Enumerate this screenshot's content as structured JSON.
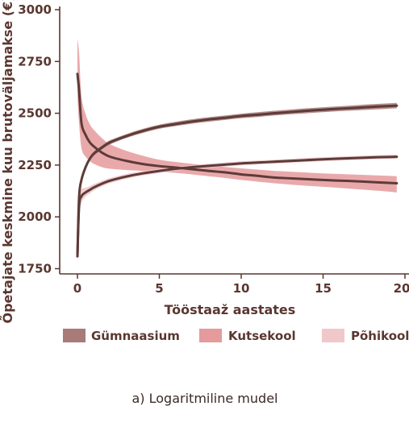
{
  "chart_data": {
    "type": "line",
    "title": "",
    "caption": "a) Logaritmiline mudel",
    "xlabel": "Tööstaaž aastates",
    "ylabel": "Õpetajate keskmine kuu brutoväljamakse (€)",
    "xlim": [
      -0.9,
      20.3
    ],
    "ylim": [
      1700,
      3010
    ],
    "x_ticks": [
      0,
      5,
      10,
      15,
      20
    ],
    "y_ticks": [
      1750,
      2000,
      2250,
      2500,
      2750,
      3000
    ],
    "grid": false,
    "legend_position": "bottom",
    "x": [
      0,
      0.1,
      0.25,
      0.5,
      0.75,
      1,
      1.5,
      2,
      3,
      4,
      5,
      6,
      7,
      8,
      9,
      10,
      11,
      12,
      13,
      14,
      15,
      16,
      17,
      18,
      19,
      19.5
    ],
    "series": [
      {
        "name": "Gümnaasium",
        "color": "#a87b78",
        "line_color": "#5d3b38",
        "values": [
          1810,
          2095,
          2180,
          2240,
          2280,
          2305,
          2335,
          2360,
          2390,
          2415,
          2435,
          2448,
          2460,
          2470,
          2478,
          2487,
          2493,
          2500,
          2506,
          2512,
          2517,
          2522,
          2526,
          2531,
          2535,
          2537
        ],
        "lower": [
          1800,
          2080,
          2168,
          2230,
          2270,
          2295,
          2325,
          2350,
          2381,
          2405,
          2425,
          2438,
          2450,
          2459,
          2468,
          2476,
          2482,
          2489,
          2495,
          2500,
          2505,
          2510,
          2514,
          2518,
          2522,
          2524
        ],
        "upper": [
          1835,
          2110,
          2192,
          2250,
          2290,
          2315,
          2345,
          2370,
          2400,
          2425,
          2445,
          2459,
          2471,
          2481,
          2489,
          2498,
          2505,
          2512,
          2518,
          2524,
          2529,
          2534,
          2539,
          2544,
          2548,
          2550
        ]
      },
      {
        "name": "Kutsekool",
        "color": "#e59a9c",
        "line_color": "#5d3b38",
        "values": [
          2690,
          2610,
          2450,
          2395,
          2360,
          2340,
          2310,
          2290,
          2270,
          2255,
          2245,
          2238,
          2230,
          2222,
          2215,
          2205,
          2198,
          2190,
          2186,
          2182,
          2178,
          2175,
          2172,
          2168,
          2164,
          2162
        ],
        "lower": [
          2580,
          2450,
          2330,
          2290,
          2270,
          2256,
          2240,
          2232,
          2226,
          2222,
          2218,
          2212,
          2205,
          2196,
          2188,
          2178,
          2170,
          2162,
          2156,
          2150,
          2145,
          2140,
          2134,
          2128,
          2122,
          2118
        ],
        "upper": [
          2860,
          2790,
          2580,
          2495,
          2448,
          2420,
          2380,
          2350,
          2318,
          2295,
          2276,
          2265,
          2256,
          2248,
          2241,
          2234,
          2228,
          2222,
          2218,
          2214,
          2210,
          2207,
          2204,
          2201,
          2198,
          2196
        ]
      },
      {
        "name": "Põhikool",
        "color": "#f0c8c9",
        "line_color": "#5d3b38",
        "values": [
          1810,
          2050,
          2100,
          2118,
          2130,
          2142,
          2160,
          2175,
          2195,
          2210,
          2222,
          2232,
          2240,
          2246,
          2252,
          2258,
          2262,
          2266,
          2270,
          2274,
          2278,
          2281,
          2284,
          2287,
          2289,
          2290
        ],
        "lower": [
          1760,
          2000,
          2068,
          2098,
          2113,
          2127,
          2147,
          2163,
          2184,
          2200,
          2212,
          2222,
          2230,
          2237,
          2243,
          2249,
          2253,
          2257,
          2261,
          2265,
          2269,
          2272,
          2275,
          2278,
          2280,
          2281
        ],
        "upper": [
          2000,
          2110,
          2135,
          2140,
          2148,
          2158,
          2174,
          2188,
          2207,
          2221,
          2232,
          2242,
          2250,
          2256,
          2262,
          2268,
          2272,
          2276,
          2280,
          2284,
          2288,
          2291,
          2294,
          2297,
          2299,
          2300
        ]
      }
    ]
  }
}
